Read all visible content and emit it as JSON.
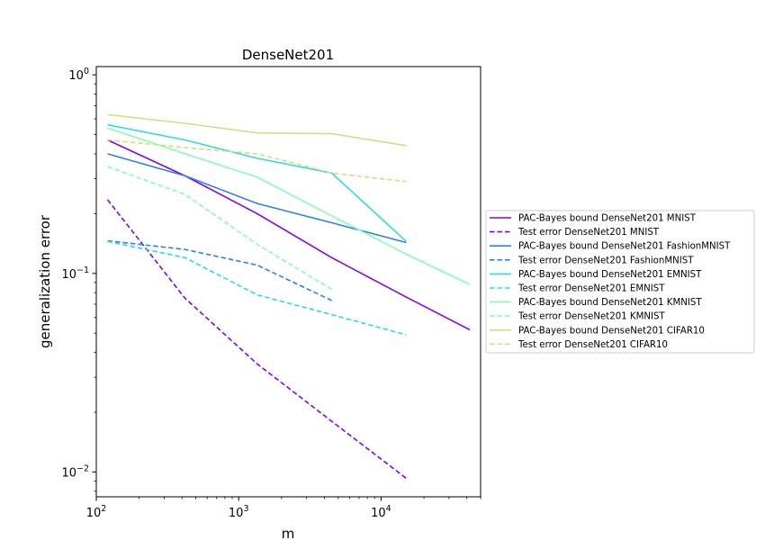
{
  "chart_data": {
    "type": "line",
    "title": "DenseNet201",
    "xlabel": "m",
    "ylabel": "generalization error",
    "xscale": "log",
    "yscale": "log",
    "xlim": [
      100,
      50000
    ],
    "ylim": [
      0.0075,
      1.1
    ],
    "grid": false,
    "legend_position": "outside-right",
    "x_ticks": [
      {
        "value": 100,
        "base": "10",
        "exp": "2"
      },
      {
        "value": 1000,
        "base": "10",
        "exp": "3"
      },
      {
        "value": 10000,
        "base": "10",
        "exp": "4"
      }
    ],
    "y_ticks": [
      {
        "value": 0.01,
        "base": "10",
        "exp": "−2"
      },
      {
        "value": 0.1,
        "base": "10",
        "exp": "−1"
      },
      {
        "value": 1,
        "base": "10",
        "exp": "0"
      }
    ],
    "series": [
      {
        "name": "PAC-Bayes bound DenseNet201 MNIST",
        "color": "#8000ff",
        "dash": "solid",
        "x": [
          120,
          420,
          1350,
          4500,
          15000,
          42000
        ],
        "y": [
          0.47,
          0.31,
          0.2,
          0.12,
          0.076,
          0.052
        ]
      },
      {
        "name": "Test error DenseNet201 MNIST",
        "color": "#8000ff",
        "dash": "dashed",
        "x": [
          120,
          420,
          1350,
          4500,
          15000
        ],
        "y": [
          0.235,
          0.075,
          0.035,
          0.018,
          0.0093
        ]
      },
      {
        "name": "PAC-Bayes bound DenseNet201 FashionMNIST",
        "color": "#2c7ef7",
        "dash": "solid",
        "x": [
          120,
          420,
          1350,
          4500,
          15000
        ],
        "y": [
          0.4,
          0.31,
          0.225,
          0.18,
          0.143
        ]
      },
      {
        "name": "Test error DenseNet201 FashionMNIST",
        "color": "#2c7ef7",
        "dash": "dashed",
        "x": [
          120,
          420,
          1350,
          4500
        ],
        "y": [
          0.146,
          0.132,
          0.11,
          0.073
        ]
      },
      {
        "name": "PAC-Bayes bound DenseNet201 EMNIST",
        "color": "#2adddd",
        "dash": "solid",
        "x": [
          120,
          420,
          1350,
          4500,
          15000
        ],
        "y": [
          0.56,
          0.47,
          0.38,
          0.32,
          0.145
        ]
      },
      {
        "name": "Test error DenseNet201 EMNIST",
        "color": "#2adddd",
        "dash": "dashed",
        "x": [
          120,
          420,
          1350,
          4500,
          15000
        ],
        "y": [
          0.145,
          0.12,
          0.078,
          0.062,
          0.049
        ]
      },
      {
        "name": "PAC-Bayes bound DenseNet201 KMNIST",
        "color": "#80ffb4",
        "dash": "solid",
        "x": [
          120,
          420,
          1350,
          4500,
          15000,
          42000
        ],
        "y": [
          0.54,
          0.4,
          0.305,
          0.195,
          0.125,
          0.088
        ]
      },
      {
        "name": "Test error DenseNet201 KMNIST",
        "color": "#80ffb4",
        "dash": "dashed",
        "x": [
          120,
          420,
          1350,
          4500
        ],
        "y": [
          0.345,
          0.25,
          0.14,
          0.083
        ]
      },
      {
        "name": "PAC-Bayes bound DenseNet201 CIFAR10",
        "color": "#d4dd80",
        "dash": "solid",
        "x": [
          120,
          420,
          1350,
          4500,
          15000
        ],
        "y": [
          0.63,
          0.57,
          0.51,
          0.505,
          0.44
        ]
      },
      {
        "name": "Test error DenseNet201 CIFAR10",
        "color": "#d4dd80",
        "dash": "dashed",
        "x": [
          120,
          420,
          1350,
          4500,
          15000
        ],
        "y": [
          0.47,
          0.43,
          0.4,
          0.32,
          0.29
        ]
      }
    ]
  }
}
